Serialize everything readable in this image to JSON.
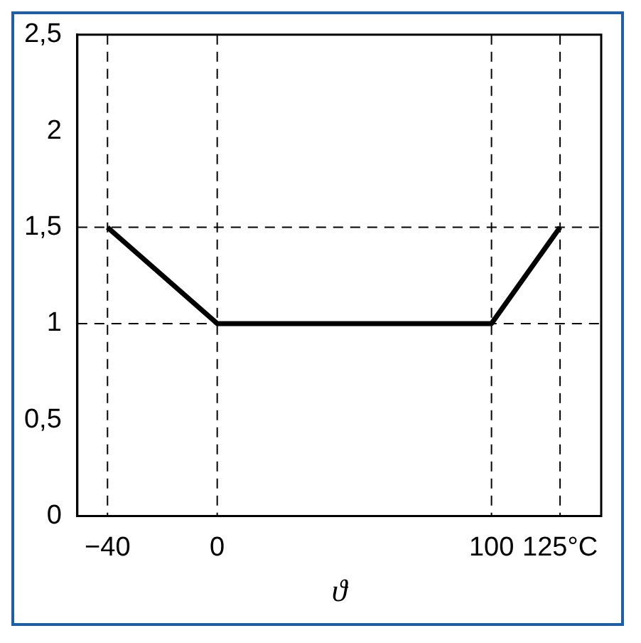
{
  "chart_data": {
    "type": "line",
    "xlabel": "ϑ",
    "x": [
      -40,
      0,
      100,
      125
    ],
    "series": [
      {
        "color": "#000000",
        "values": [
          1.5,
          1,
          1,
          1.5
        ]
      }
    ],
    "xlim": [
      -51,
      140
    ],
    "xticks": [
      {
        "value": -40,
        "label": "−40"
      },
      0,
      100,
      {
        "value": 125,
        "label": "125°C"
      }
    ],
    "ylim": [
      0,
      2.5
    ],
    "yticks": [
      0,
      {
        "value": 0.5,
        "label": "0,5"
      },
      1,
      {
        "value": 1.5,
        "label": "1,5"
      },
      2,
      {
        "value": 2.5,
        "label": "2,5"
      }
    ],
    "ref_lines": [
      {
        "axis": "x",
        "value": -40,
        "line_style": "dashed",
        "color": "#000000"
      },
      {
        "axis": "x",
        "value": 0,
        "line_style": "dashed",
        "color": "#000000"
      },
      {
        "axis": "x",
        "value": 100,
        "line_style": "dashed",
        "color": "#000000"
      },
      {
        "axis": "x",
        "value": 125,
        "line_style": "dashed",
        "color": "#000000"
      },
      {
        "axis": "y",
        "value": 1,
        "line_style": "dashed",
        "color": "#000000"
      },
      {
        "axis": "y",
        "value": 1.5,
        "line_style": "dashed",
        "color": "#000000"
      }
    ],
    "grid": false,
    "legend": false,
    "marker": "none",
    "line_style": "solid"
  }
}
